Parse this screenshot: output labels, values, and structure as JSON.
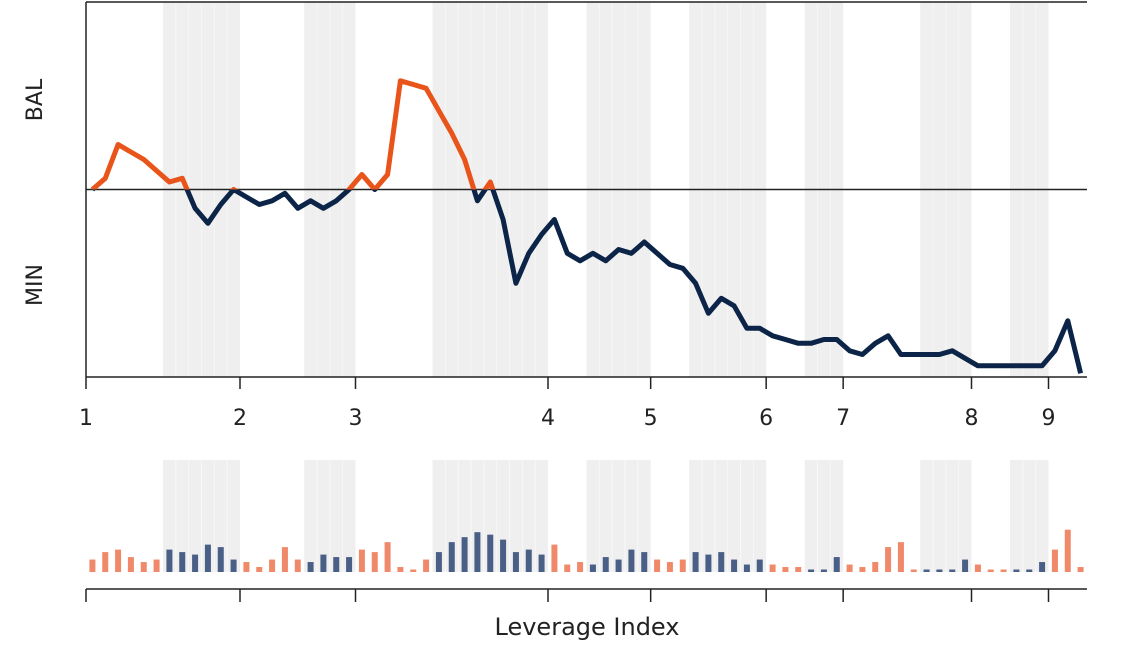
{
  "chart_data": [
    {
      "type": "line",
      "y_labels": [
        "BAL",
        "MIN"
      ],
      "colors": [
        "#e8541a",
        "#0b2447"
      ],
      "values": [
        50,
        53,
        62,
        60,
        58,
        55,
        52,
        53,
        45,
        41,
        46,
        50,
        48,
        46,
        47,
        49,
        45,
        47,
        45,
        47,
        50,
        54,
        50,
        54,
        79,
        78,
        77,
        71,
        65,
        58,
        47,
        52,
        42,
        25,
        33,
        38,
        42,
        33,
        31,
        33,
        31,
        34,
        33,
        36,
        33,
        30,
        29,
        25,
        17,
        21,
        19,
        13,
        13,
        11,
        10,
        9,
        9,
        10,
        10,
        7,
        6,
        9,
        11,
        6,
        6,
        6,
        6,
        7,
        5,
        3,
        3,
        3,
        3,
        3,
        3,
        7,
        15,
        1
      ],
      "ylim": [
        0,
        100
      ],
      "reference_line": 50,
      "xlim": [
        0,
        78
      ],
      "xticks": [
        {
          "value": 0,
          "label": "1"
        },
        {
          "value": 12,
          "label": "2"
        },
        {
          "value": 21,
          "label": "3"
        },
        {
          "value": 36,
          "label": "4"
        },
        {
          "value": 44,
          "label": "5"
        },
        {
          "value": 53,
          "label": "6"
        },
        {
          "value": 59,
          "label": "7"
        },
        {
          "value": 69,
          "label": "8"
        },
        {
          "value": 75,
          "label": "9"
        }
      ],
      "shaded": [
        [
          6,
          12
        ],
        [
          17,
          21
        ],
        [
          27,
          36
        ],
        [
          39,
          44
        ],
        [
          47,
          53
        ],
        [
          56,
          59
        ],
        [
          65,
          69
        ],
        [
          72,
          75
        ]
      ]
    },
    {
      "type": "bar",
      "xlabel": "Leverage Index",
      "colors": [
        "#f0896a",
        "#4a5f86"
      ],
      "ylim": [
        0,
        4.5
      ],
      "values": [
        0.5,
        0.8,
        0.9,
        0.6,
        0.4,
        0.5,
        0.9,
        0.8,
        0.7,
        1.1,
        1.0,
        0.5,
        0.4,
        0.2,
        0.5,
        1.0,
        0.5,
        0.4,
        0.7,
        0.6,
        0.6,
        0.9,
        0.8,
        1.2,
        0.2,
        0.1,
        0.5,
        0.8,
        1.2,
        1.4,
        1.6,
        1.5,
        1.3,
        0.8,
        0.9,
        0.7,
        1.1,
        0.3,
        0.4,
        0.3,
        0.6,
        0.5,
        0.9,
        0.8,
        0.5,
        0.4,
        0.5,
        0.8,
        0.7,
        0.8,
        0.5,
        0.3,
        0.5,
        0.3,
        0.2,
        0.2,
        0.1,
        0.1,
        0.6,
        0.3,
        0.2,
        0.4,
        1.0,
        1.2,
        0.1,
        0.1,
        0.1,
        0.1,
        0.5,
        0.3,
        0.1,
        0.1,
        0.1,
        0.1,
        0.4,
        0.9,
        1.7,
        0.2
      ]
    }
  ]
}
